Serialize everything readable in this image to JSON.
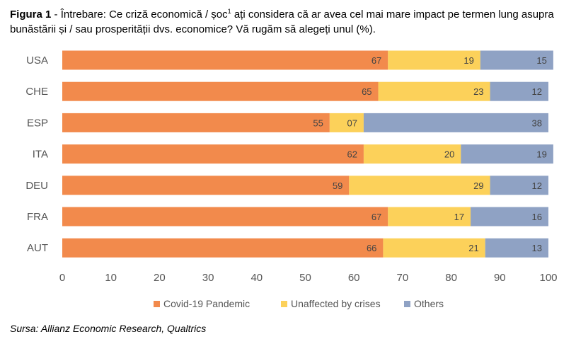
{
  "caption": {
    "prefix": "Figura 1",
    "sep": " - ",
    "text_a": "Întrebare: Ce criză economică / șoc",
    "footnote_mark": "1",
    "text_b": " ați considera că ar avea cel mai mare impact pe termen lung asupra bunăstării și / sau prosperității dvs. economice? Vă rugăm să alegeți unul (%)."
  },
  "source": "Sursa: Allianz Economic Research, Qualtrics",
  "chart_data": {
    "type": "bar",
    "orientation": "horizontal",
    "stacked": true,
    "categories": [
      "USA",
      "CHE",
      "ESP",
      "ITA",
      "DEU",
      "FRA",
      "AUT"
    ],
    "series": [
      {
        "name": "Covid-19 Pandemic",
        "color": "#F28A4C",
        "values": [
          67,
          65,
          55,
          62,
          59,
          67,
          66
        ],
        "labels": [
          "67",
          "65",
          "55",
          "62",
          "59",
          "67",
          "66"
        ]
      },
      {
        "name": "Unaffected by crises",
        "color": "#FCD15A",
        "values": [
          19,
          23,
          7,
          20,
          29,
          17,
          21
        ],
        "labels": [
          "19",
          "23",
          "07",
          "20",
          "29",
          "17",
          "21"
        ]
      },
      {
        "name": "Others",
        "color": "#8FA2C4",
        "values": [
          15,
          12,
          38,
          19,
          12,
          16,
          13
        ],
        "labels": [
          "15",
          "12",
          "38",
          "19",
          "12",
          "16",
          "13"
        ]
      }
    ],
    "xlim": [
      0,
      100
    ],
    "xticks": [
      "0",
      "10",
      "20",
      "30",
      "40",
      "50",
      "60",
      "70",
      "80",
      "90",
      "100"
    ],
    "legend_position": "bottom",
    "grid": false
  }
}
